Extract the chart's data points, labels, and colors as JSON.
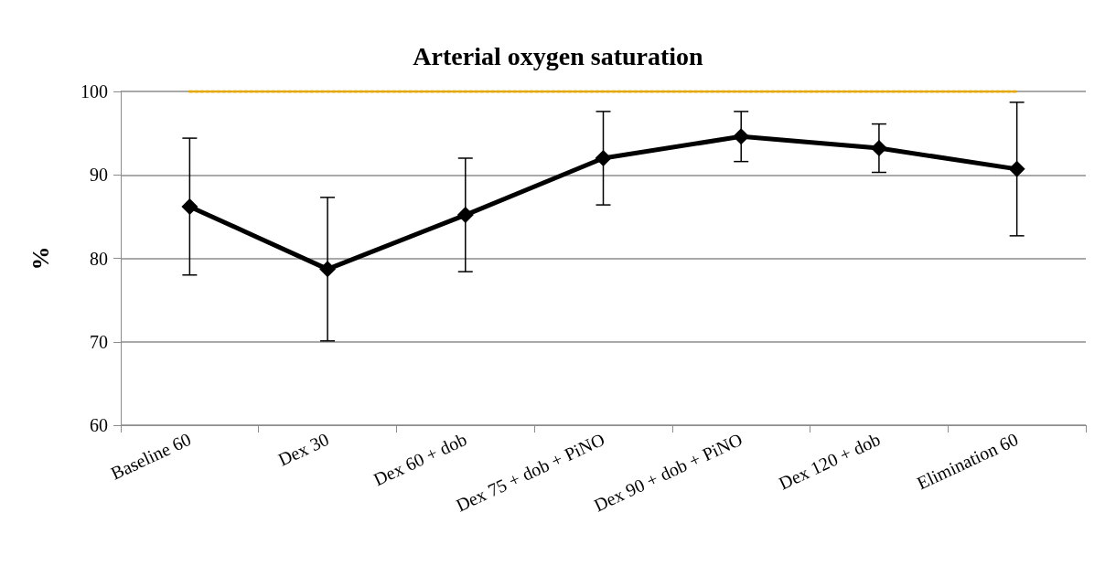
{
  "chart_data": {
    "type": "line",
    "title": "Arterial oxygen saturation",
    "ylabel": "%",
    "categories": [
      "Baseline 60",
      "Dex 30",
      "Dex 60 + dob",
      "Dex 75 + dob + PiNO",
      "Dex 90 + dob + PiNO",
      "Dex 120 + dob",
      "Elimination 60"
    ],
    "series": [
      {
        "color": "#000000",
        "values": [
          86.2,
          78.7,
          85.2,
          92.0,
          94.6,
          93.2,
          90.7
        ],
        "errors": [
          8.2,
          8.6,
          6.8,
          5.6,
          3,
          2.9,
          8
        ],
        "marker": "diamond",
        "line_style": "solid"
      },
      {
        "color": "#e8a800",
        "values": [
          100,
          100,
          100,
          100,
          100,
          100,
          100
        ],
        "marker": "none",
        "line_style": "dotted"
      }
    ],
    "ylim": [
      60,
      100
    ],
    "yticks": [
      60,
      70,
      80,
      90,
      100
    ],
    "grid": "y"
  }
}
